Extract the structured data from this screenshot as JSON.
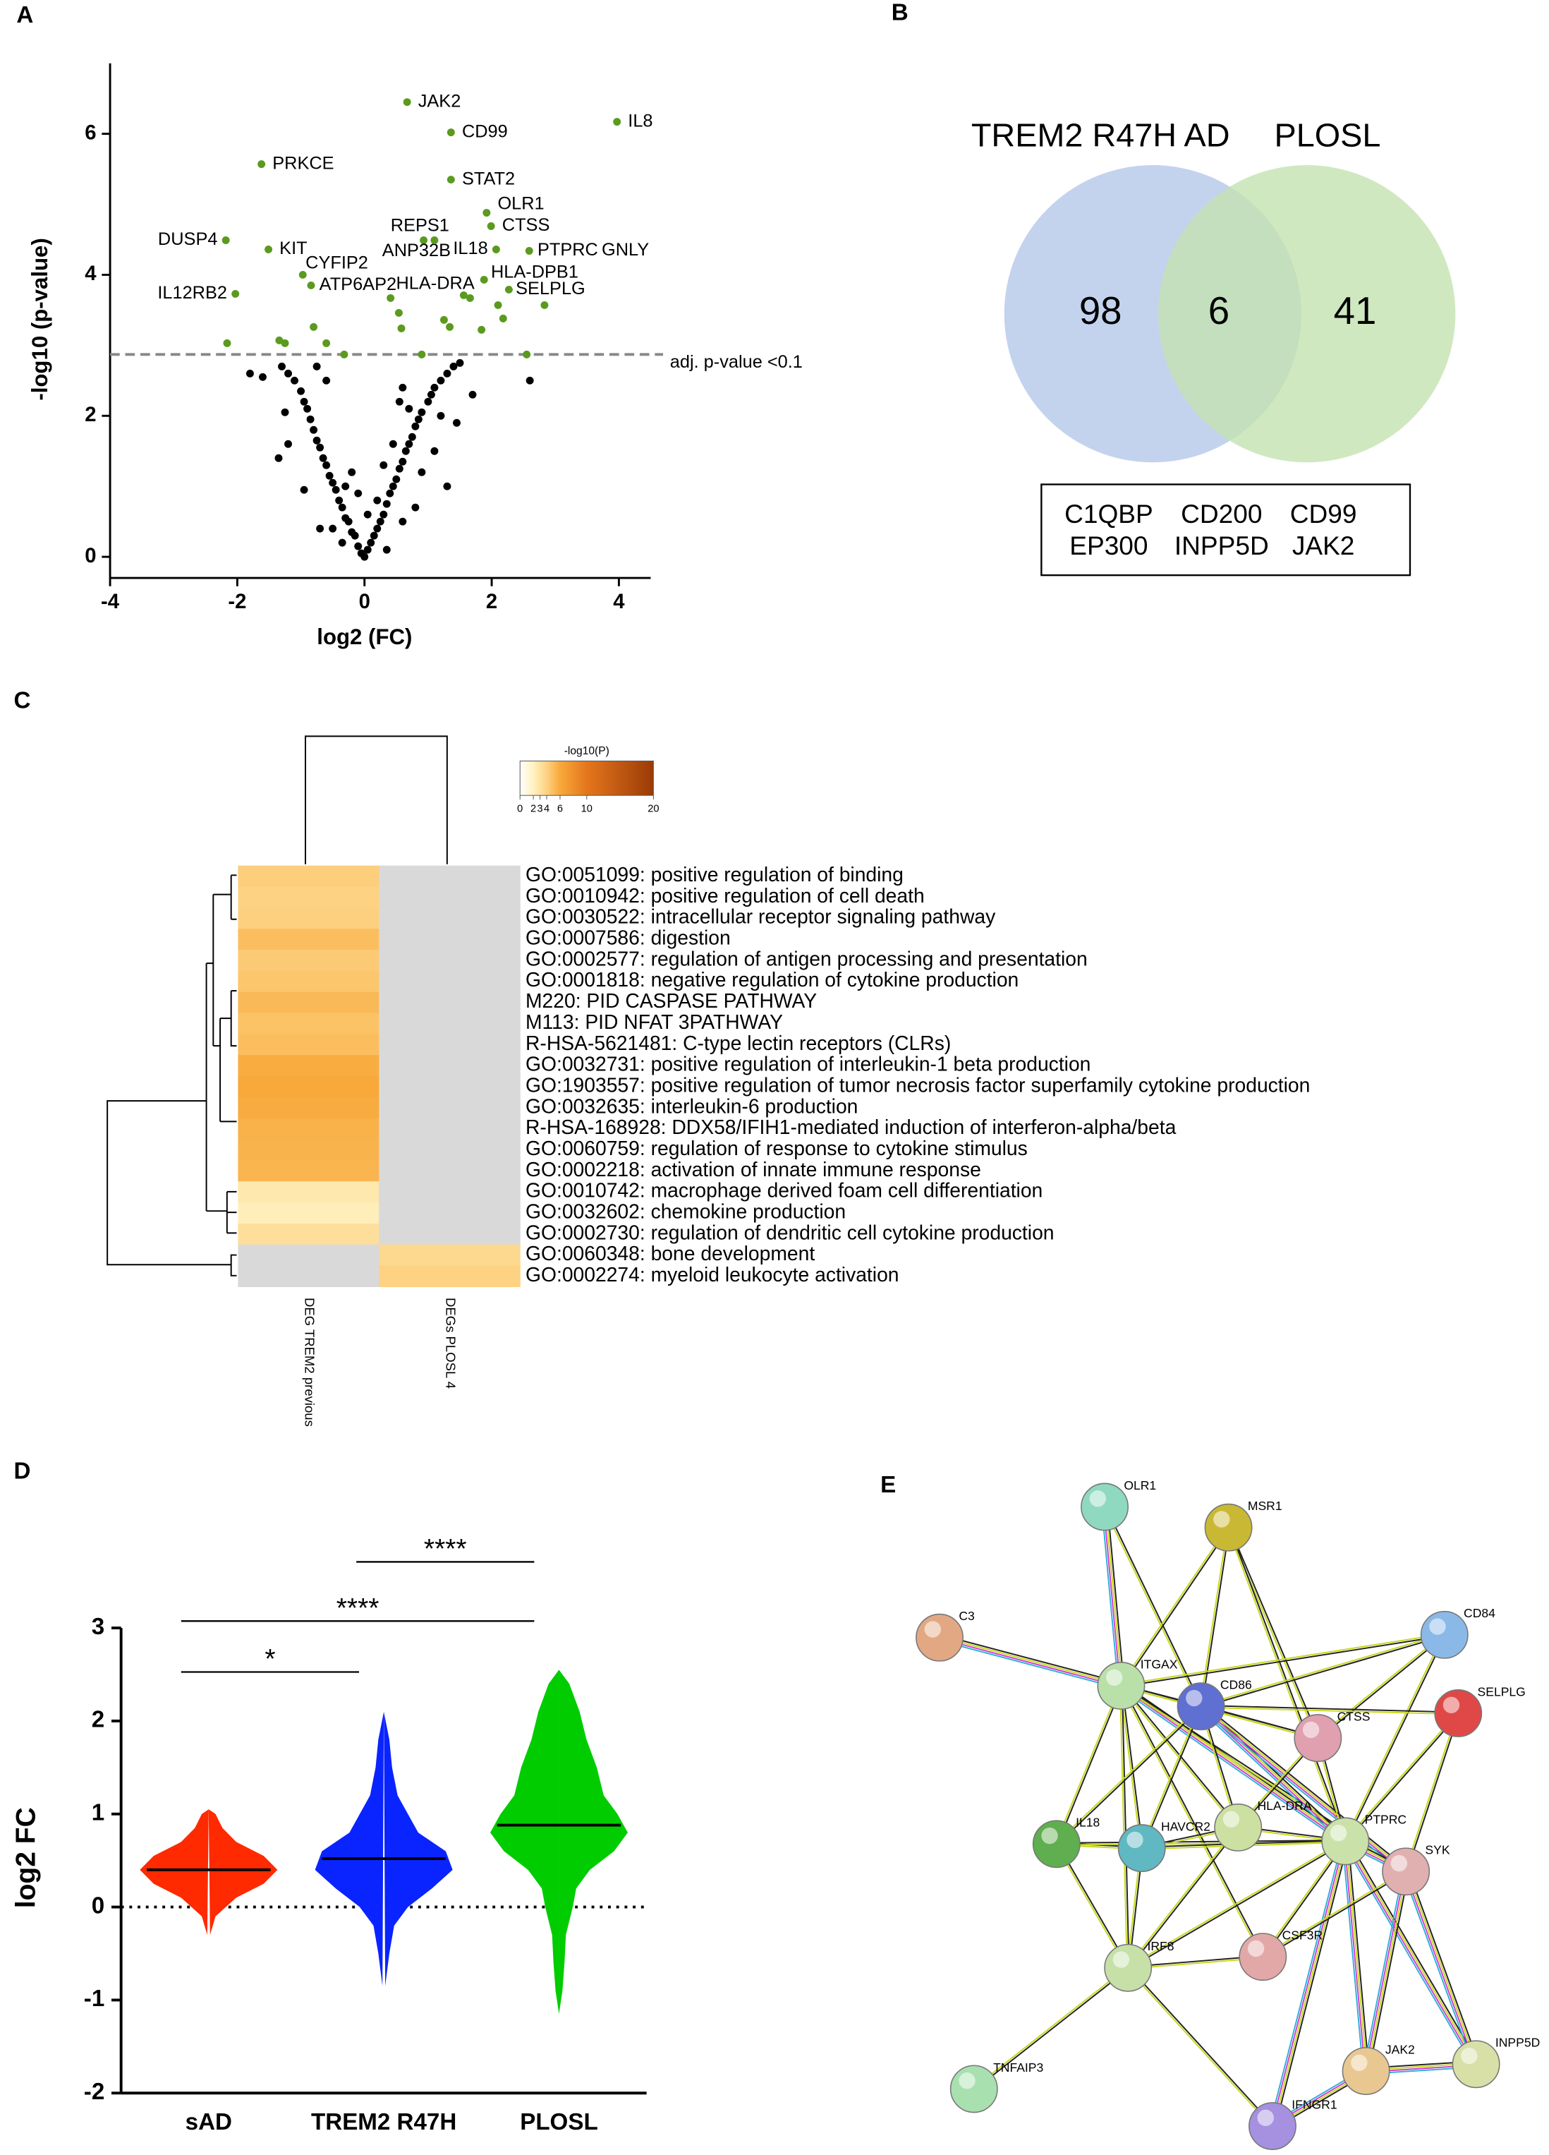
{
  "panel_labels": [
    "A",
    "B",
    "C",
    "D",
    "E"
  ],
  "chart_data": [
    {
      "type": "scatter",
      "x_label": "log2 (FC)",
      "y_label": "-log10 (p-value)",
      "xlim": [
        -4,
        4.5
      ],
      "ylim": [
        -0.3,
        7
      ],
      "xticks": [
        -4,
        -2,
        0,
        2,
        4
      ],
      "yticks": [
        0,
        2,
        4,
        6
      ],
      "threshold": {
        "value": 2.87,
        "label": "adj. p-value <0.1"
      },
      "series": [
        {
          "color": "#000000",
          "x": [
            -0.05,
            0.05,
            0.1,
            -0.1,
            0,
            0.15,
            -0.15,
            0.2,
            -0.2,
            0.25,
            -0.25,
            0.3,
            -0.3,
            0.35,
            -0.35,
            0.4,
            -0.4,
            0.45,
            -0.45,
            0.5,
            -0.5,
            0.55,
            -0.55,
            0.6,
            -0.6,
            0.65,
            -0.65,
            0.7,
            -0.7,
            0.75,
            -0.75,
            0.8,
            -0.8,
            0.85,
            -0.85,
            0.9,
            -0.9,
            1.0,
            -0.95,
            1.05,
            -1.0,
            1.1,
            -1.1,
            1.2,
            -1.2,
            1.3,
            -1.3,
            1.4,
            1.5,
            0.55,
            0.6,
            0.7,
            0.45,
            -0.2,
            -0.3,
            -0.5,
            0.9,
            1.1,
            1.3,
            0.2,
            0.3,
            -0.6,
            -0.75,
            -1.8,
            -1.6,
            -1.25,
            -1.35,
            -1.2,
            -0.95,
            1.2,
            1.45,
            1.7,
            2.6,
            0.8,
            0.05,
            -0.1,
            0.35,
            -0.35,
            0.6,
            -0.7
          ],
          "values": [
            0.05,
            0.1,
            0.2,
            0.15,
            0.0,
            0.3,
            0.3,
            0.4,
            0.35,
            0.5,
            0.5,
            0.6,
            0.55,
            0.75,
            0.7,
            0.9,
            0.8,
            1.0,
            0.95,
            1.1,
            1.05,
            1.25,
            1.15,
            1.35,
            1.3,
            1.5,
            1.4,
            1.6,
            1.55,
            1.7,
            1.65,
            1.85,
            1.8,
            1.95,
            1.95,
            2.05,
            2.1,
            2.2,
            2.2,
            2.3,
            2.35,
            2.4,
            2.5,
            2.5,
            2.6,
            2.6,
            2.7,
            2.7,
            2.75,
            2.2,
            2.4,
            2.1,
            1.6,
            1.2,
            1.0,
            0.4,
            1.2,
            1.5,
            1.0,
            0.8,
            1.3,
            2.5,
            2.7,
            2.6,
            2.55,
            2.05,
            1.4,
            1.6,
            0.95,
            2.0,
            1.9,
            2.3,
            2.5,
            0.7,
            0.6,
            0.9,
            0.1,
            0.2,
            0.5,
            0.4
          ]
        },
        {
          "color": "#5b9a1e",
          "x": [
            0.67,
            1.36,
            3.97,
            -1.62,
            1.36,
            1.92,
            1.99,
            0.93,
            1.1,
            2.07,
            2.59,
            3.6,
            -2.18,
            -1.51,
            -0.97,
            -0.84,
            0.41,
            1.88,
            2.27,
            -2.03,
            -2.16,
            -1.34,
            -1.25,
            -0.6,
            -0.8,
            0.54,
            0.58,
            1.25,
            1.34,
            1.56,
            1.66,
            1.84,
            2.1,
            2.18,
            2.83,
            2.55,
            0.9,
            -0.32
          ],
          "values": [
            6.45,
            6.02,
            6.17,
            5.57,
            5.35,
            4.88,
            4.69,
            4.49,
            4.49,
            4.36,
            4.34,
            4.34,
            4.49,
            4.36,
            4.0,
            3.85,
            3.67,
            3.93,
            3.79,
            3.73,
            3.03,
            3.07,
            3.03,
            3.03,
            3.26,
            3.46,
            3.24,
            3.36,
            3.26,
            3.71,
            3.67,
            3.22,
            3.57,
            3.38,
            3.57,
            2.87,
            2.87,
            2.87
          ],
          "labels": [
            "JAK2",
            "CD99",
            "IL8",
            "PRKCE",
            "STAT2",
            "OLR1",
            "CTSS",
            "REPS1",
            "ANP32B",
            "IL18",
            "PTPRC",
            "GNLY",
            "DUSP4",
            "KIT",
            "CYFIP2",
            "ATP6AP2",
            "HLA-DRA",
            "HLA-DPB1",
            "SELPLG",
            "IL12RB2",
            null,
            null,
            null,
            null,
            null,
            null,
            null,
            null,
            null,
            null,
            null,
            null,
            null,
            null,
            null,
            null,
            null,
            null
          ]
        }
      ]
    },
    {
      "type": "violin",
      "y_label": "log2 FC",
      "categories": [
        "sAD",
        "TREM2 R47H",
        "PLOSL"
      ],
      "ylim": [
        -2,
        3
      ],
      "yticks": [
        -2,
        -1,
        0,
        1,
        2,
        3
      ],
      "series": [
        {
          "color": "#ff2a00",
          "median": 0.4,
          "density_y": [
            -0.3,
            -0.1,
            0.1,
            0.25,
            0.4,
            0.55,
            0.7,
            0.85,
            1.0,
            1.05
          ],
          "density": [
            0.02,
            0.1,
            0.4,
            0.8,
            1.0,
            0.8,
            0.4,
            0.2,
            0.1,
            0
          ]
        },
        {
          "color": "#0a24ff",
          "median": 0.52,
          "density_y": [
            -0.85,
            -0.5,
            -0.2,
            0,
            0.2,
            0.4,
            0.6,
            0.8,
            1.0,
            1.2,
            1.5,
            1.8,
            2.1
          ],
          "density": [
            0.02,
            0.08,
            0.15,
            0.35,
            0.7,
            1.0,
            0.9,
            0.5,
            0.35,
            0.2,
            0.12,
            0.08,
            0
          ]
        },
        {
          "color": "#00cc00",
          "median": 0.88,
          "density_y": [
            -1.15,
            -0.9,
            -0.6,
            -0.3,
            0,
            0.2,
            0.4,
            0.6,
            0.8,
            1.0,
            1.2,
            1.5,
            1.8,
            2.1,
            2.4,
            2.55
          ],
          "density": [
            0,
            0.05,
            0.08,
            0.1,
            0.2,
            0.25,
            0.45,
            0.8,
            1.0,
            0.85,
            0.65,
            0.55,
            0.4,
            0.3,
            0.15,
            0
          ]
        }
      ],
      "significance": [
        {
          "from": 0,
          "to": 1,
          "label": "*"
        },
        {
          "from": 0,
          "to": 2,
          "label": "****"
        },
        {
          "from": 1,
          "to": 2,
          "label": "****"
        }
      ]
    }
  ],
  "venn": {
    "sets": [
      {
        "name": "TREM2 R47H AD",
        "count": 98,
        "color": "#c3d3ee"
      },
      {
        "name": "PLOSL",
        "count": 41,
        "color": "#c4e2b0"
      }
    ],
    "overlap": 6,
    "genes": [
      "C1QBP",
      "CD200",
      "CD99",
      "EP300",
      "INPP5D",
      "JAK2"
    ]
  },
  "heatmap": {
    "columns": [
      "DEG TREM2 previous",
      "DEGs PLOSL 4"
    ],
    "rows": [
      "GO:0051099: positive regulation of binding",
      "GO:0010942: positive regulation of cell death",
      "GO:0030522: intracellular receptor signaling pathway",
      "GO:0007586: digestion",
      "GO:0002577: regulation of antigen processing and presentation",
      "GO:0001818: negative regulation of cytokine production",
      "M220: PID CASPASE PATHWAY",
      "M113: PID NFAT 3PATHWAY",
      "R-HSA-5621481: C-type lectin receptors (CLRs)",
      "GO:0032731: positive regulation of interleukin-1 beta production",
      "GO:1903557: positive regulation of tumor necrosis factor superfamily cytokine production",
      "GO:0032635: interleukin-6 production",
      "R-HSA-168928: DDX58/IFIH1-mediated induction of interferon-alpha/beta",
      "GO:0060759: regulation of response to cytokine stimulus",
      "GO:0002218: activation of innate immune response",
      "GO:0010742: macrophage derived foam cell differentiation",
      "GO:0032602: chemokine production",
      "GO:0002730: regulation of dendritic cell cytokine production",
      "GO:0060348: bone development",
      "GO:0002274: myeloid leukocyte activation"
    ],
    "values": [
      [
        4.2,
        null
      ],
      [
        4.0,
        null
      ],
      [
        4.1,
        null
      ],
      [
        5.0,
        null
      ],
      [
        4.4,
        null
      ],
      [
        4.6,
        null
      ],
      [
        5.2,
        null
      ],
      [
        4.8,
        null
      ],
      [
        5.0,
        null
      ],
      [
        5.8,
        null
      ],
      [
        6.0,
        null
      ],
      [
        5.9,
        null
      ],
      [
        5.6,
        null
      ],
      [
        5.5,
        null
      ],
      [
        5.4,
        null
      ],
      [
        2.6,
        null
      ],
      [
        2.2,
        null
      ],
      [
        3.2,
        null
      ],
      [
        null,
        3.6
      ],
      [
        null,
        4.0
      ]
    ],
    "null_color": "#d9d9d9",
    "colorbar": {
      "title": "-log10(P)",
      "lim": [
        0,
        20
      ],
      "ticks": [
        0,
        2,
        3,
        4,
        6,
        10,
        20
      ],
      "stops": [
        [
          0,
          "#ffffff"
        ],
        [
          2,
          "#fff1c0"
        ],
        [
          4,
          "#fdd283"
        ],
        [
          6,
          "#f8a93a"
        ],
        [
          10,
          "#e4761d"
        ],
        [
          20,
          "#9a3a06"
        ]
      ]
    }
  },
  "network": {
    "nodes": [
      {
        "label": "OLR1",
        "color": "#8fd9c0"
      },
      {
        "label": "MSR1",
        "color": "#c9b834"
      },
      {
        "label": "C3",
        "color": "#e2a883"
      },
      {
        "label": "CD84",
        "color": "#8ab9e8"
      },
      {
        "label": "ITGAX",
        "color": "#b9e0a8"
      },
      {
        "label": "CD86",
        "color": "#5f6fd2"
      },
      {
        "label": "SELPLG",
        "color": "#e04848"
      },
      {
        "label": "CTSS",
        "color": "#e0a0b0"
      },
      {
        "label": "IL18",
        "color": "#5fae4f"
      },
      {
        "label": "HAVCR2",
        "color": "#5fb8c2"
      },
      {
        "label": "HLA-DRA",
        "color": "#cce0a2"
      },
      {
        "label": "PTPRC",
        "color": "#cae2aa"
      },
      {
        "label": "SYK",
        "color": "#e0b0b0"
      },
      {
        "label": "IRF8",
        "color": "#c6e0a8"
      },
      {
        "label": "CSF3R",
        "color": "#e2a8a8"
      },
      {
        "label": "TNFAIP3",
        "color": "#a8e0b0"
      },
      {
        "label": "JAK2",
        "color": "#e8c890"
      },
      {
        "label": "INPP5D",
        "color": "#d8e0a8"
      },
      {
        "label": "IFNGR1",
        "color": "#a690e0"
      }
    ]
  }
}
